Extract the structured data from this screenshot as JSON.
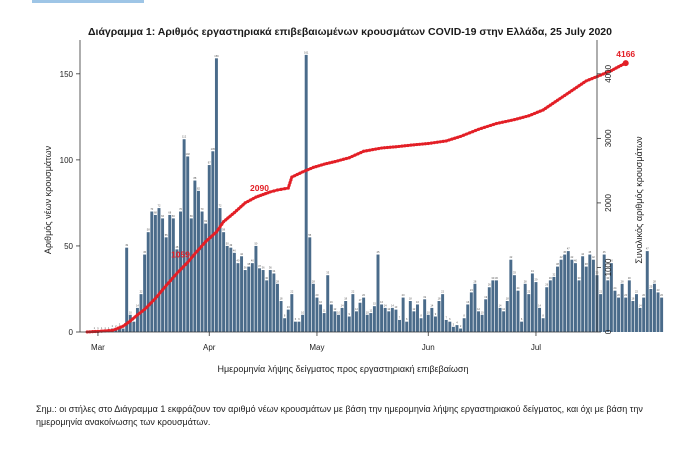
{
  "chart_data": {
    "type": "bar+line",
    "title": "Διάγραμμα 1: Αριθμός εργαστηριακά επιβεβαιωμένων κρουσμάτων COVID-19 στην Ελλάδα, 25 July 2020",
    "xlabel": "Ημερομηνία λήψης δείγματος προς εργαστηριακή επιβεβαίωση",
    "ylabel_left": "Αριθμός νέων κρουσμάτων",
    "ylabel_right": "Συνολικός αριθμός κρουσμάτων",
    "ylim_left": [
      0,
      165
    ],
    "ylim_right": [
      0,
      4400
    ],
    "yticks_left": [
      "0",
      "50",
      "100",
      "150"
    ],
    "yticks_right": [
      "0",
      "1000",
      "2000",
      "3000",
      "4000"
    ],
    "x_tick_labels": [
      "Mar",
      "Apr",
      "May",
      "Jun",
      "Jul"
    ],
    "x_tick_days": [
      0,
      31,
      61,
      92,
      122
    ],
    "x_range_days": [
      -5,
      139
    ],
    "series": [
      {
        "name": "Νέα κρούσματα",
        "kind": "bar",
        "color": "#4a6b8a",
        "day_offset": -1,
        "values": [
          1,
          1,
          1,
          1,
          1,
          2,
          2,
          3,
          2,
          49,
          10,
          6,
          14,
          22,
          45,
          58,
          70,
          68,
          72,
          66,
          55,
          68,
          66,
          48,
          70,
          112,
          102,
          66,
          88,
          82,
          70,
          63,
          97,
          105,
          159,
          72,
          58,
          50,
          49,
          46,
          40,
          44,
          36,
          38,
          40,
          50,
          37,
          36,
          30,
          36,
          34,
          28,
          18,
          8,
          13,
          22,
          6,
          6,
          10,
          161,
          55,
          28,
          20,
          16,
          11,
          33,
          16,
          12,
          10,
          14,
          18,
          9,
          22,
          12,
          17,
          20,
          10,
          11,
          15,
          45,
          16,
          14,
          12,
          14,
          13,
          7,
          20,
          6,
          18,
          12,
          16,
          8,
          19,
          10,
          14,
          9,
          18,
          22,
          7,
          6,
          3,
          4,
          2,
          8,
          16,
          23,
          28,
          12,
          10,
          19,
          26,
          30,
          30,
          14,
          12,
          18,
          42,
          33,
          24,
          6,
          28,
          22,
          34,
          29,
          14,
          8,
          26,
          30,
          32,
          38,
          42,
          45,
          47,
          42,
          40,
          30,
          44,
          38,
          45,
          42,
          33,
          22,
          45,
          30,
          40,
          24,
          20,
          28,
          20,
          30,
          18,
          22,
          14,
          20,
          47,
          25,
          28,
          23,
          20
        ]
      },
      {
        "name": "Συνολικός αριθμός",
        "kind": "line",
        "color": "#e31f26",
        "points": [
          [
            -3,
            1
          ],
          [
            0,
            10
          ],
          [
            2,
            18
          ],
          [
            4,
            25
          ],
          [
            5,
            45
          ],
          [
            7,
            90
          ],
          [
            9,
            170
          ],
          [
            11,
            265
          ],
          [
            13,
            350
          ],
          [
            16,
            520
          ],
          [
            19,
            720
          ],
          [
            22,
            910
          ],
          [
            25,
            1080
          ],
          [
            27,
            1212
          ],
          [
            30,
            1400
          ],
          [
            33,
            1550
          ],
          [
            35,
            1710
          ],
          [
            38,
            1850
          ],
          [
            41,
            2000
          ],
          [
            44,
            2090
          ],
          [
            46,
            2130
          ],
          [
            48,
            2170
          ],
          [
            50,
            2200
          ],
          [
            52,
            2220
          ],
          [
            53,
            2230
          ],
          [
            54,
            2400
          ],
          [
            57,
            2480
          ],
          [
            60,
            2550
          ],
          [
            63,
            2600
          ],
          [
            66,
            2640
          ],
          [
            70,
            2700
          ],
          [
            74,
            2800
          ],
          [
            79,
            2850
          ],
          [
            83,
            2870
          ],
          [
            88,
            2900
          ],
          [
            92,
            2920
          ],
          [
            97,
            2960
          ],
          [
            101,
            3030
          ],
          [
            106,
            3140
          ],
          [
            111,
            3230
          ],
          [
            116,
            3290
          ],
          [
            120,
            3350
          ],
          [
            124,
            3440
          ],
          [
            128,
            3590
          ],
          [
            132,
            3740
          ],
          [
            136,
            3890
          ],
          [
            140,
            3980
          ],
          [
            143,
            4050
          ],
          [
            145,
            4110
          ],
          [
            147,
            4166
          ]
        ]
      }
    ],
    "annotations": [
      {
        "text": "1059",
        "day": 23,
        "value": 1059
      },
      {
        "text": "2090",
        "day": 45,
        "value": 2090
      },
      {
        "text": "4166",
        "day": 147,
        "value": 4166
      }
    ]
  },
  "footnote": "Σημ.: οι στήλες στο Διάγραμμα 1 εκφράζουν τον αριθμό νέων κρουσμάτων με βάση την ημερομηνία λήψης εργαστηριακού δείγματος, και όχι με βάση την ημερομηνία ανακοίνωσης των κρουσμάτων."
}
